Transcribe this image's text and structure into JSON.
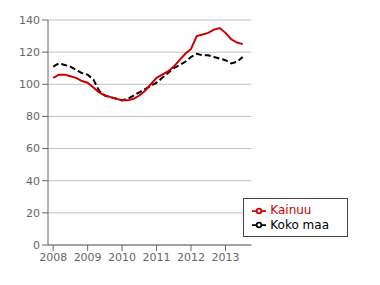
{
  "chart_data": {
    "type": "line",
    "x": [
      2008.0,
      2008.1667,
      2008.3333,
      2008.5,
      2008.6667,
      2008.8333,
      2009.0,
      2009.1667,
      2009.3333,
      2009.5,
      2009.6667,
      2009.8333,
      2010.0,
      2010.1667,
      2010.3333,
      2010.5,
      2010.6667,
      2010.8333,
      2011.0,
      2011.1667,
      2011.3333,
      2011.5,
      2011.6667,
      2011.8333,
      2012.0,
      2012.1667,
      2012.3333,
      2012.5,
      2012.6667,
      2012.8333,
      2013.0,
      2013.1667,
      2013.3333,
      2013.5
    ],
    "series": [
      {
        "name": "Koko maa",
        "color": "#000000",
        "line_style": "dashed",
        "values": [
          111,
          113,
          112,
          111,
          109,
          107,
          106,
          103,
          96,
          93,
          92,
          91,
          90,
          91,
          93,
          95,
          97,
          99,
          101,
          104,
          107,
          110,
          112,
          114,
          117,
          119,
          118,
          118,
          117,
          116,
          115,
          113,
          114,
          117
        ]
      },
      {
        "name": "Kainuu",
        "color": "#cc0000",
        "line_style": "solid",
        "values": [
          104,
          106,
          106,
          105,
          104,
          102,
          101,
          98,
          95,
          93,
          92,
          91,
          90,
          90,
          91,
          93,
          96,
          100,
          104,
          106,
          108,
          111,
          115,
          119,
          122,
          130,
          131,
          132,
          134,
          135,
          132,
          128,
          126,
          125
        ]
      }
    ],
    "xlim": [
      2007.85,
      2013.75
    ],
    "xticks": [
      2008,
      2009,
      2010,
      2011,
      2012,
      2013
    ],
    "ylim": [
      0,
      140
    ],
    "yticks": [
      0,
      20,
      40,
      60,
      80,
      100,
      120,
      140
    ],
    "grid": "y",
    "legend": "lower right"
  }
}
